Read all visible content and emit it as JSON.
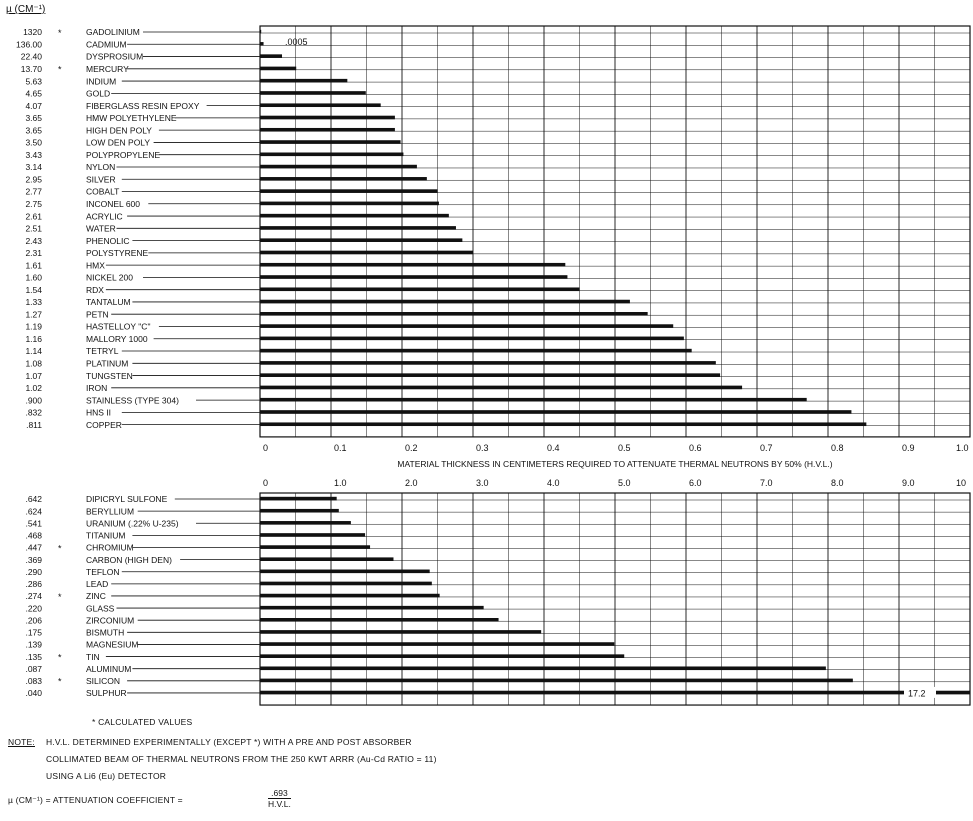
{
  "header": {
    "mu_label": "µ (CM⁻¹)"
  },
  "footnote": {
    "calc_label": "* CALCULATED VALUES"
  },
  "note": {
    "label": "NOTE:",
    "line1": "H.V.L. DETERMINED EXPERIMENTALLY (EXCEPT *) WITH A PRE AND POST ABSORBER",
    "line2": "COLLIMATED BEAM OF THERMAL NEUTRONS FROM THE 250 KWT ARRR (Au-Cd RATIO = 11)",
    "line3": "USING A Li6 (Eu) DETECTOR",
    "formula_prefix": "µ (CM⁻¹) = ATTENUATION COEFFICIENT =",
    "formula_num": ".693",
    "formula_den": "H.V.L."
  },
  "chart_data": [
    {
      "type": "bar",
      "orientation": "horizontal",
      "xlim": [
        0,
        1.0
      ],
      "xticks": [
        "0",
        "0.1",
        "0.2",
        "0.3",
        "0.4",
        "0.5",
        "0.6",
        "0.7",
        "0.8",
        "0.9",
        "1.0"
      ],
      "xlabel": "MATERIAL THICKNESS IN CENTIMETERS REQUIRED TO ATTENUATE THERMAL NEUTRONS BY 50% (H.V.L.)",
      "grid": true,
      "annotation": ".0005",
      "rows": [
        {
          "mu": "1320",
          "star": true,
          "name": "GADOLINIUM",
          "value": 0.0005
        },
        {
          "mu": "136.00",
          "star": false,
          "name": "CADMIUM",
          "value": 0.005
        },
        {
          "mu": "22.40",
          "star": false,
          "name": "DYSPROSIUM",
          "value": 0.031
        },
        {
          "mu": "13.70",
          "star": true,
          "name": "MERCURY",
          "value": 0.051
        },
        {
          "mu": "5.63",
          "star": false,
          "name": "INDIUM",
          "value": 0.123
        },
        {
          "mu": "4.65",
          "star": false,
          "name": "GOLD",
          "value": 0.149
        },
        {
          "mu": "4.07",
          "star": false,
          "name": "FIBERGLASS RESIN EPOXY",
          "value": 0.17
        },
        {
          "mu": "3.65",
          "star": false,
          "name": "HMW POLYETHYLENE",
          "value": 0.19
        },
        {
          "mu": "3.65",
          "star": false,
          "name": "HIGH DEN POLY",
          "value": 0.19
        },
        {
          "mu": "3.50",
          "star": false,
          "name": "LOW DEN POLY",
          "value": 0.198
        },
        {
          "mu": "3.43",
          "star": false,
          "name": "POLYPROPYLENE",
          "value": 0.202
        },
        {
          "mu": "3.14",
          "star": false,
          "name": "NYLON",
          "value": 0.221
        },
        {
          "mu": "2.95",
          "star": false,
          "name": "SILVER",
          "value": 0.235
        },
        {
          "mu": "2.77",
          "star": false,
          "name": "COBALT",
          "value": 0.25
        },
        {
          "mu": "2.75",
          "star": false,
          "name": "INCONEL 600",
          "value": 0.252
        },
        {
          "mu": "2.61",
          "star": false,
          "name": "ACRYLIC",
          "value": 0.266
        },
        {
          "mu": "2.51",
          "star": false,
          "name": "WATER",
          "value": 0.276
        },
        {
          "mu": "2.43",
          "star": false,
          "name": "PHENOLIC",
          "value": 0.285
        },
        {
          "mu": "2.31",
          "star": false,
          "name": "POLYSTYRENE",
          "value": 0.3
        },
        {
          "mu": "1.61",
          "star": false,
          "name": "HMX",
          "value": 0.43
        },
        {
          "mu": "1.60",
          "star": false,
          "name": "NICKEL 200",
          "value": 0.433
        },
        {
          "mu": "1.54",
          "star": false,
          "name": "RDX",
          "value": 0.45
        },
        {
          "mu": "1.33",
          "star": false,
          "name": "TANTALUM",
          "value": 0.521
        },
        {
          "mu": "1.27",
          "star": false,
          "name": "PETN",
          "value": 0.546
        },
        {
          "mu": "1.19",
          "star": false,
          "name": "HASTELLOY \"C\"",
          "value": 0.582
        },
        {
          "mu": "1.16",
          "star": false,
          "name": "MALLORY 1000",
          "value": 0.597
        },
        {
          "mu": "1.14",
          "star": false,
          "name": "TETRYL",
          "value": 0.608
        },
        {
          "mu": "1.08",
          "star": false,
          "name": "PLATINUM",
          "value": 0.642
        },
        {
          "mu": "1.07",
          "star": false,
          "name": "TUNGSTEN",
          "value": 0.648
        },
        {
          "mu": "1.02",
          "star": false,
          "name": "IRON",
          "value": 0.679
        },
        {
          "mu": ".900",
          "star": false,
          "name": "STAINLESS (TYPE 304)",
          "value": 0.77
        },
        {
          "mu": ".832",
          "star": false,
          "name": "HNS II",
          "value": 0.833
        },
        {
          "mu": ".811",
          "star": false,
          "name": "COPPER",
          "value": 0.854
        }
      ]
    },
    {
      "type": "bar",
      "orientation": "horizontal",
      "xlim": [
        0,
        10
      ],
      "xticks": [
        "0",
        "1.0",
        "2.0",
        "3.0",
        "4.0",
        "5.0",
        "6.0",
        "7.0",
        "8.0",
        "9.0",
        "10"
      ],
      "xlabel": "",
      "grid": true,
      "annotation": "17.2",
      "rows": [
        {
          "mu": ".642",
          "star": false,
          "name": "DIPICRYL SULFONE",
          "value": 1.08
        },
        {
          "mu": ".624",
          "star": false,
          "name": "BERYLLIUM",
          "value": 1.11
        },
        {
          "mu": ".541",
          "star": false,
          "name": "URANIUM (.22% U-235)",
          "value": 1.28
        },
        {
          "mu": ".468",
          "star": false,
          "name": "TITANIUM",
          "value": 1.48
        },
        {
          "mu": ".447",
          "star": true,
          "name": "CHROMIUM",
          "value": 1.55
        },
        {
          "mu": ".369",
          "star": false,
          "name": "CARBON (HIGH DEN)",
          "value": 1.88
        },
        {
          "mu": ".290",
          "star": false,
          "name": "TEFLON",
          "value": 2.39
        },
        {
          "mu": ".286",
          "star": false,
          "name": "LEAD",
          "value": 2.42
        },
        {
          "mu": ".274",
          "star": true,
          "name": "ZINC",
          "value": 2.53
        },
        {
          "mu": ".220",
          "star": false,
          "name": "GLASS",
          "value": 3.15
        },
        {
          "mu": ".206",
          "star": false,
          "name": "ZIRCONIUM",
          "value": 3.36
        },
        {
          "mu": ".175",
          "star": false,
          "name": "BISMUTH",
          "value": 3.96
        },
        {
          "mu": ".139",
          "star": false,
          "name": "MAGNESIUM",
          "value": 4.99
        },
        {
          "mu": ".135",
          "star": true,
          "name": "TIN",
          "value": 5.13
        },
        {
          "mu": ".087",
          "star": false,
          "name": "ALUMINUM",
          "value": 7.97
        },
        {
          "mu": ".083",
          "star": true,
          "name": "SILICON",
          "value": 8.35
        },
        {
          "mu": ".040",
          "star": false,
          "name": "SULPHUR",
          "value": 17.2
        }
      ]
    }
  ]
}
